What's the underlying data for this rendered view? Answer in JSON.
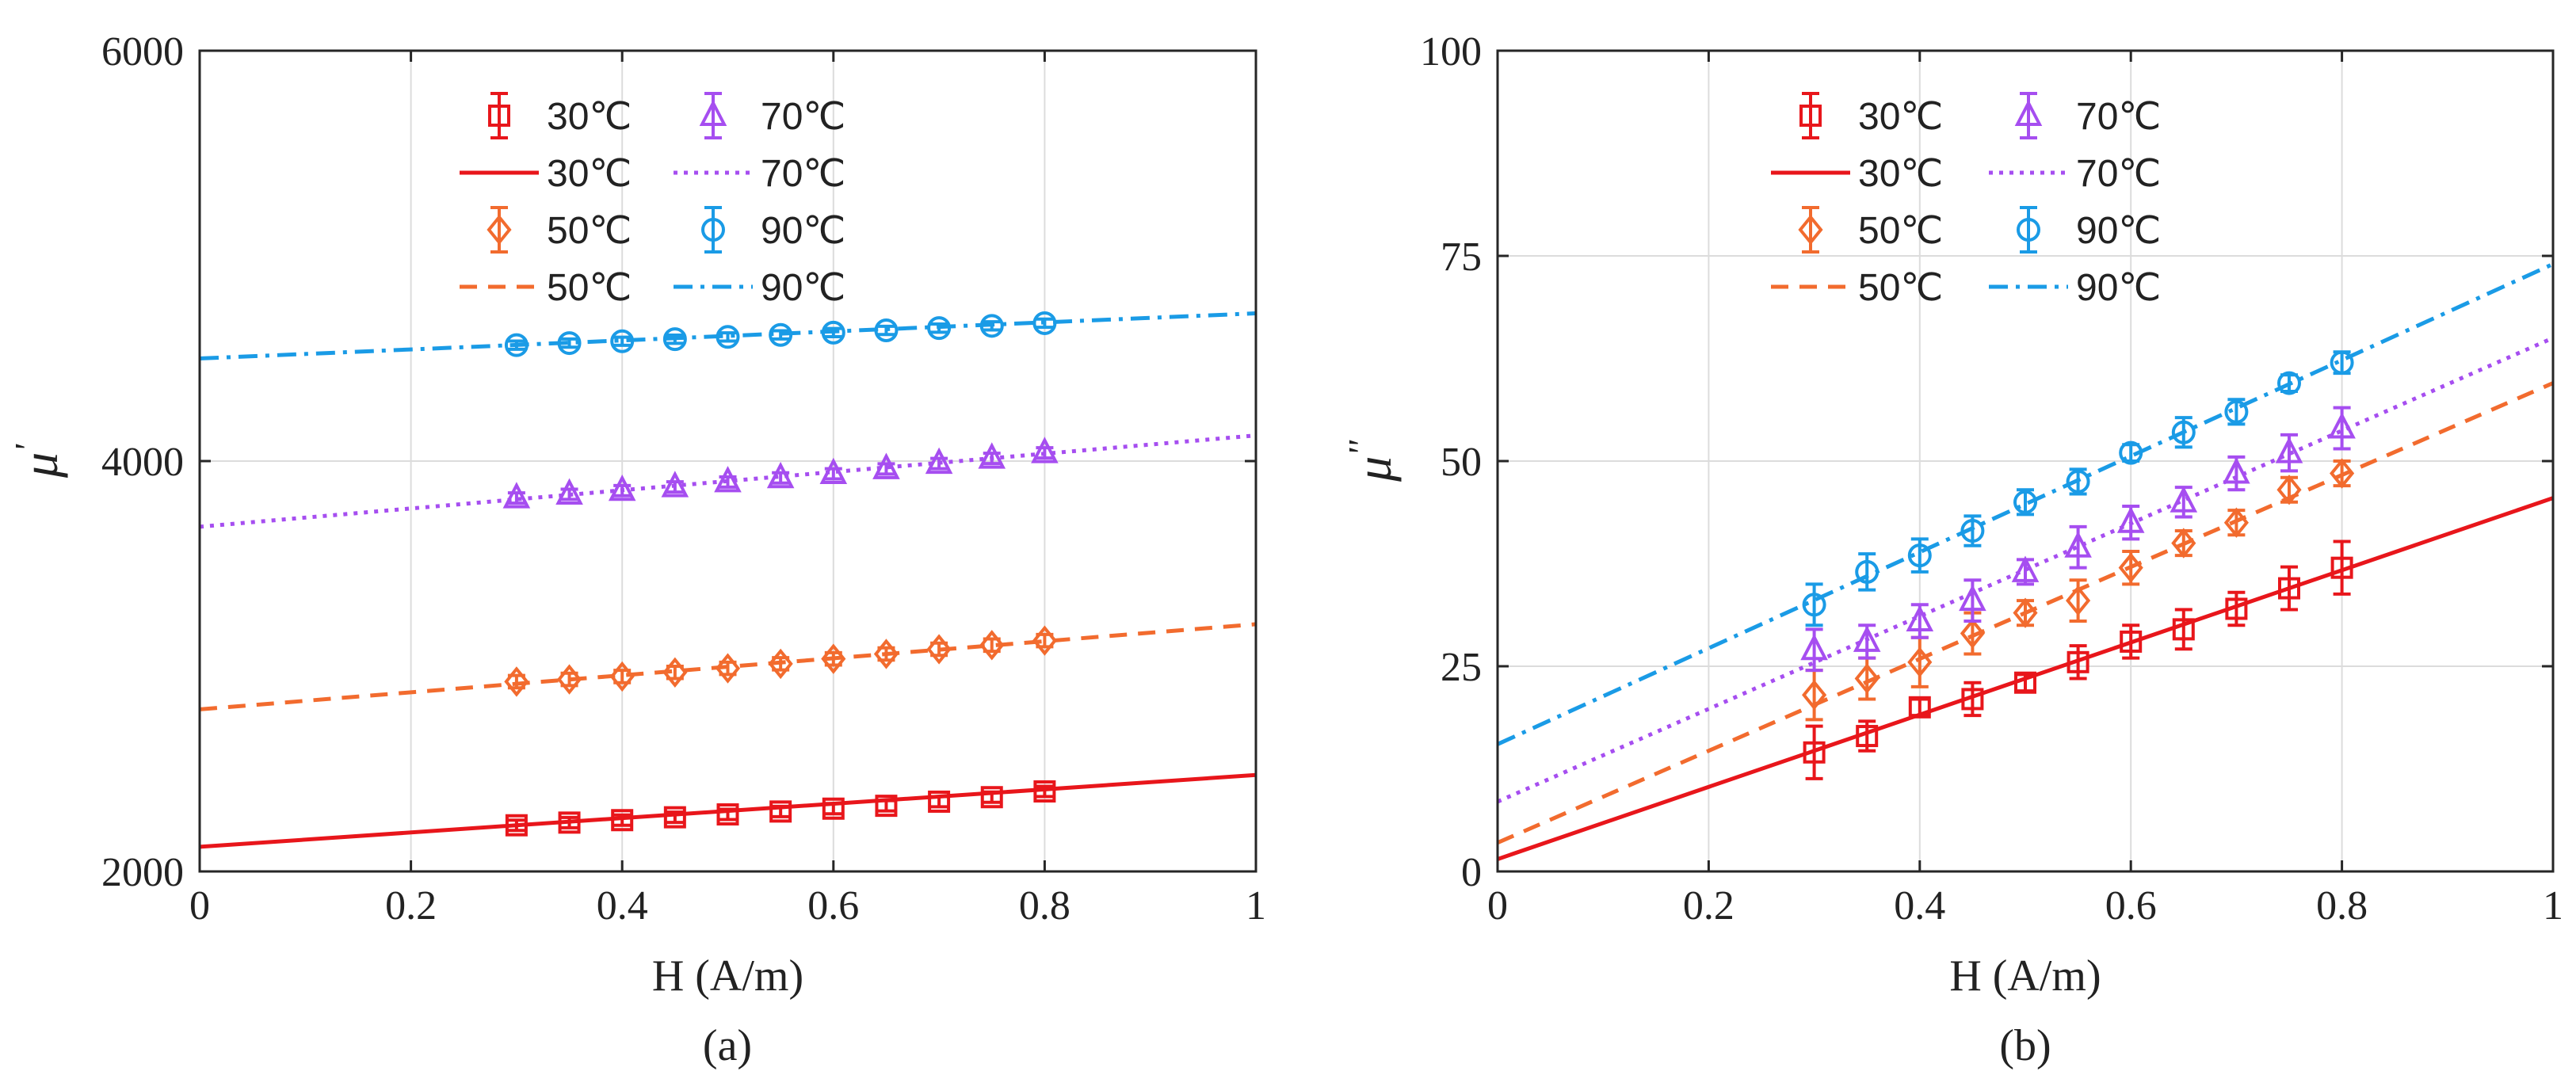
{
  "chart_data": [
    {
      "type": "scatter",
      "panel_label": "(a)",
      "xlabel": "H (A/m)",
      "ylabel": "μ",
      "ylabel_mark": "'",
      "xlim": [
        0,
        1
      ],
      "ylim": [
        2000,
        6000
      ],
      "xticks": [
        0,
        0.2,
        0.4,
        0.6,
        0.8,
        1
      ],
      "yticks": [
        2000,
        4000,
        6000
      ],
      "xtick_labels": [
        "0",
        "0.2",
        "0.4",
        "0.6",
        "0.8",
        "1"
      ],
      "ytick_labels": [
        "2000",
        "4000",
        "6000"
      ],
      "grid": true,
      "legend_position": "top-center",
      "series": [
        {
          "name": "30℃",
          "fit_name": "30℃",
          "color": "#e8161b",
          "marker": "square",
          "linestyle": "solid",
          "x": [
            0.3,
            0.35,
            0.4,
            0.45,
            0.5,
            0.55,
            0.6,
            0.65,
            0.7,
            0.75,
            0.8
          ],
          "y": [
            2225,
            2238,
            2250,
            2264,
            2278,
            2292,
            2306,
            2320,
            2340,
            2362,
            2390
          ],
          "err": [
            25,
            25,
            25,
            25,
            25,
            25,
            25,
            25,
            25,
            25,
            25
          ],
          "fit": {
            "x": [
              0,
              1
            ],
            "y": [
              2120,
              2470
            ]
          }
        },
        {
          "name": "50℃",
          "fit_name": "50℃",
          "color": "#f26b2e",
          "marker": "diamond",
          "linestyle": "dashed",
          "x": [
            0.3,
            0.35,
            0.4,
            0.45,
            0.5,
            0.55,
            0.6,
            0.65,
            0.7,
            0.75,
            0.8
          ],
          "y": [
            2925,
            2936,
            2950,
            2970,
            2990,
            3012,
            3036,
            3060,
            3083,
            3103,
            3125
          ],
          "err": [
            30,
            30,
            30,
            30,
            30,
            30,
            30,
            30,
            30,
            30,
            30
          ],
          "fit": {
            "x": [
              0,
              1
            ],
            "y": [
              2790,
              3205
            ]
          }
        },
        {
          "name": "70℃",
          "fit_name": "70℃",
          "color": "#a64ef0",
          "marker": "triangle",
          "linestyle": "dotted",
          "x": [
            0.3,
            0.35,
            0.4,
            0.45,
            0.5,
            0.55,
            0.6,
            0.65,
            0.7,
            0.75,
            0.8
          ],
          "y": [
            3820,
            3838,
            3856,
            3874,
            3898,
            3918,
            3938,
            3962,
            3988,
            4013,
            4040
          ],
          "err": [
            25,
            25,
            25,
            25,
            25,
            25,
            25,
            25,
            25,
            25,
            25
          ],
          "fit": {
            "x": [
              0,
              1
            ],
            "y": [
              3680,
              4125
            ]
          }
        },
        {
          "name": "90℃",
          "fit_name": "90℃",
          "color": "#1a9be6",
          "marker": "circle",
          "linestyle": "dashdot",
          "x": [
            0.3,
            0.35,
            0.4,
            0.45,
            0.5,
            0.55,
            0.6,
            0.65,
            0.7,
            0.75,
            0.8
          ],
          "y": [
            4565,
            4575,
            4584,
            4594,
            4605,
            4615,
            4626,
            4637,
            4648,
            4659,
            4672
          ],
          "err": [
            20,
            20,
            20,
            20,
            20,
            20,
            20,
            20,
            20,
            20,
            20
          ],
          "fit": {
            "x": [
              0,
              1
            ],
            "y": [
              4500,
              4720
            ]
          }
        }
      ]
    },
    {
      "type": "scatter",
      "panel_label": "(b)",
      "xlabel": "H (A/m)",
      "ylabel": "μ",
      "ylabel_mark": "''",
      "xlim": [
        0,
        1
      ],
      "ylim": [
        0,
        100
      ],
      "xticks": [
        0,
        0.2,
        0.4,
        0.6,
        0.8,
        1
      ],
      "yticks": [
        0,
        25,
        50,
        75,
        100
      ],
      "xtick_labels": [
        "0",
        "0.2",
        "0.4",
        "0.6",
        "0.8",
        "1"
      ],
      "ytick_labels": [
        "0",
        "25",
        "50",
        "75",
        "100"
      ],
      "grid": true,
      "legend_position": "top-center",
      "series": [
        {
          "name": "30℃",
          "fit_name": "30℃",
          "color": "#e8161b",
          "marker": "square",
          "linestyle": "solid",
          "x": [
            0.3,
            0.35,
            0.4,
            0.45,
            0.5,
            0.55,
            0.6,
            0.65,
            0.7,
            0.75,
            0.8
          ],
          "y": [
            14.5,
            16.5,
            20,
            21,
            23,
            25.5,
            28,
            29.5,
            32,
            34.5,
            37
          ],
          "err": [
            3.2,
            1.8,
            1,
            2,
            1,
            2,
            2,
            2.4,
            2,
            2.6,
            3.2
          ],
          "fit": {
            "x": [
              0,
              1
            ],
            "y": [
              1.5,
              45.5
            ]
          }
        },
        {
          "name": "50℃",
          "fit_name": "50℃",
          "color": "#f26b2e",
          "marker": "diamond",
          "linestyle": "dashed",
          "x": [
            0.3,
            0.35,
            0.4,
            0.45,
            0.5,
            0.55,
            0.6,
            0.65,
            0.7,
            0.75,
            0.8
          ],
          "y": [
            21.5,
            23.5,
            25.5,
            29,
            31.5,
            33,
            37,
            40,
            42.5,
            46.5,
            48.5
          ],
          "err": [
            3,
            2.5,
            3,
            2.5,
            1.5,
            2.5,
            2,
            1.5,
            1.5,
            1.5,
            1.5
          ],
          "fit": {
            "x": [
              0,
              1
            ],
            "y": [
              3.5,
              59.5
            ]
          }
        },
        {
          "name": "70℃",
          "fit_name": "70℃",
          "color": "#a64ef0",
          "marker": "triangle",
          "linestyle": "dotted",
          "x": [
            0.3,
            0.35,
            0.4,
            0.45,
            0.5,
            0.55,
            0.6,
            0.65,
            0.7,
            0.75,
            0.8
          ],
          "y": [
            27,
            28,
            30.5,
            33,
            36.5,
            39.5,
            42.5,
            45,
            48.5,
            51,
            54
          ],
          "err": [
            2.5,
            2,
            2,
            2.5,
            1.5,
            2.5,
            2,
            1.8,
            2,
            2.2,
            2.5
          ],
          "fit": {
            "x": [
              0,
              1
            ],
            "y": [
              8.5,
              65
            ]
          }
        },
        {
          "name": "90℃",
          "fit_name": "90℃",
          "color": "#1a9be6",
          "marker": "circle",
          "linestyle": "dashdot",
          "x": [
            0.3,
            0.35,
            0.4,
            0.45,
            0.5,
            0.55,
            0.6,
            0.65,
            0.7,
            0.75,
            0.8
          ],
          "y": [
            32.5,
            36.5,
            38.5,
            41.5,
            45,
            47.5,
            51,
            53.5,
            56,
            59.5,
            62
          ],
          "err": [
            2.5,
            2.2,
            2,
            1.8,
            1.5,
            1.5,
            1,
            1.8,
            1.5,
            1,
            1.3
          ],
          "fit": {
            "x": [
              0,
              1
            ],
            "y": [
              15.5,
              74
            ]
          }
        }
      ]
    }
  ]
}
